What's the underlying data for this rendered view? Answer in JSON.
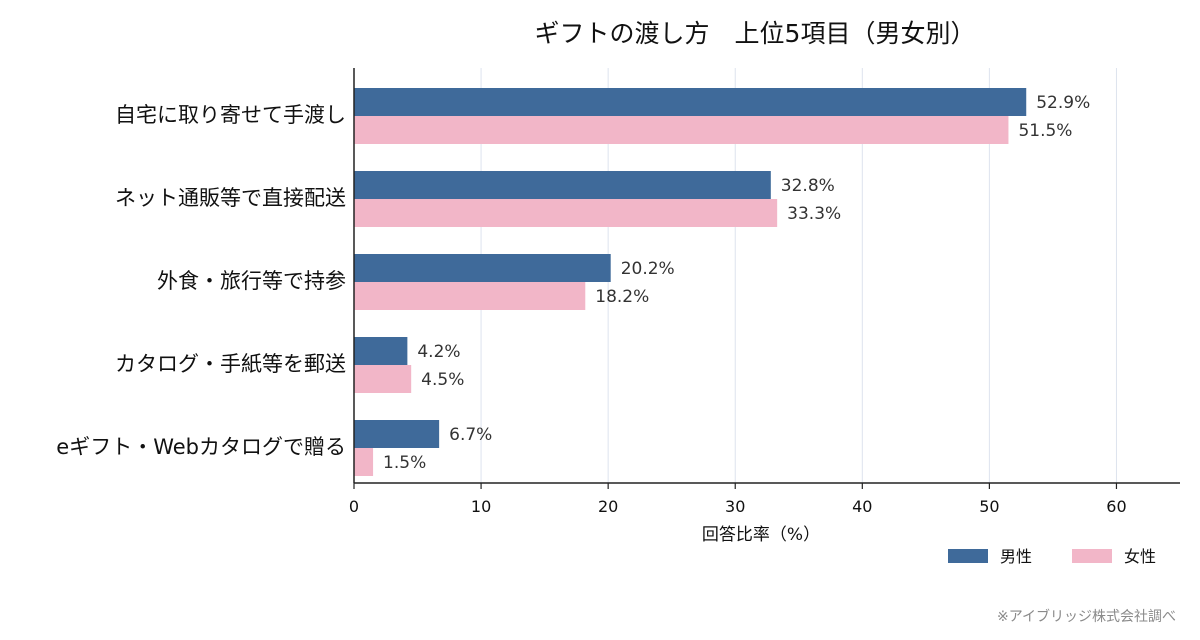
{
  "chart_data": {
    "type": "bar",
    "orientation": "horizontal",
    "title": "ギフトの渡し方　上位5項目（男女別）",
    "categories": [
      "自宅に取り寄せて手渡し",
      "ネット通販等で直接配送",
      "外食・旅行等で持参",
      "カタログ・手紙等を郵送",
      "eギフト・Webカタログで贈る"
    ],
    "series": [
      {
        "name": "男性",
        "color": "#3f6a9a",
        "values": [
          52.9,
          32.8,
          20.2,
          4.2,
          6.7
        ],
        "labels": [
          "52.9%",
          "32.8%",
          "20.2%",
          "4.2%",
          "6.7%"
        ]
      },
      {
        "name": "女性",
        "color": "#f2b6c8",
        "values": [
          51.5,
          33.3,
          18.2,
          4.5,
          1.5
        ],
        "labels": [
          "51.5%",
          "33.3%",
          "18.2%",
          "4.5%",
          "1.5%"
        ]
      }
    ],
    "xlabel": "回答比率（%）",
    "ylabel": "",
    "xlim": [
      0,
      65
    ],
    "xticks": [
      0,
      10,
      20,
      30,
      40,
      50,
      60
    ],
    "grid": "vertical",
    "legend": "bottom-right"
  },
  "footer": {
    "credit": "※アイブリッジ株式会社調べ"
  }
}
